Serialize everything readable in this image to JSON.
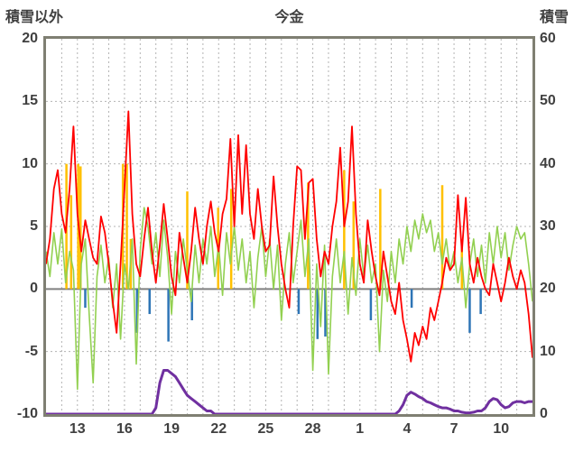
{
  "titles": {
    "left": "積雪以外",
    "center": "今金",
    "right": "積雪"
  },
  "colors": {
    "frame": "#7f7f72",
    "grid": "#b3b3b3",
    "zero_line": "#808080",
    "text": "#404040",
    "red": "#ff0000",
    "green": "#92d050",
    "orange": "#ffc000",
    "blue": "#2e75b6",
    "purple": "#7030a0"
  },
  "chart_data": {
    "type": "line",
    "title": "今金",
    "left_axis": {
      "label": "積雪以外",
      "min": -10,
      "max": 20,
      "ticks": [
        20,
        15,
        10,
        5,
        0,
        -5,
        -10
      ]
    },
    "right_axis": {
      "label": "積雪",
      "min": 0,
      "max": 60,
      "ticks": [
        60,
        50,
        40,
        30,
        20,
        10,
        0
      ]
    },
    "x_axis": {
      "tick_labels": [
        "13",
        "16",
        "19",
        "22",
        "25",
        "28",
        "1",
        "4",
        "7",
        "10"
      ],
      "tick_t": [
        2,
        5,
        8,
        11,
        14,
        17,
        20,
        23,
        26,
        29
      ],
      "t_start": 0,
      "t_end": 31,
      "t_step": 0.25,
      "grid_every_days": 1
    },
    "series": [
      {
        "name": "red-line",
        "axis": "left",
        "type": "line",
        "color": "#ff0000",
        "width": 1.8,
        "values": [
          2,
          4,
          8,
          9.5,
          6,
          4.5,
          8,
          13,
          6,
          3,
          5.5,
          4,
          2.5,
          2,
          5.8,
          4.5,
          2,
          -1,
          -3.5,
          2,
          8,
          14.2,
          6,
          2,
          1,
          4,
          6.5,
          3,
          0.5,
          3.5,
          6.8,
          4,
          1,
          -0.5,
          4.5,
          2.5,
          0.5,
          3,
          6.5,
          4,
          2,
          5,
          7,
          4.5,
          3,
          6,
          7.2,
          12,
          5,
          12.3,
          6,
          11.5,
          6,
          4,
          8,
          5,
          3,
          3.5,
          9,
          5,
          2,
          0,
          -1.5,
          5,
          9.8,
          9.5,
          4,
          8.5,
          8.8,
          4,
          1,
          3,
          2,
          5,
          7,
          11.3,
          5,
          7,
          13,
          6,
          2,
          0.5,
          5.5,
          3,
          1,
          -0.5,
          3,
          1,
          -1,
          -2,
          0.5,
          -2.5,
          -4,
          -5.8,
          -3.5,
          -4.5,
          -3,
          -4,
          -1.5,
          -2.5,
          -1,
          0.5,
          2.5,
          1.5,
          2,
          7.5,
          3,
          7.3,
          2,
          0.5,
          2.5,
          1,
          0,
          -0.5,
          2,
          0.5,
          -1,
          0.5,
          2.5,
          1,
          0,
          1.5,
          0.5,
          -2,
          -5.5
        ]
      },
      {
        "name": "green-line",
        "axis": "left",
        "type": "line",
        "color": "#92d050",
        "width": 1.6,
        "values": [
          3,
          1,
          4.5,
          2,
          4.8,
          0.5,
          3,
          1.5,
          -8,
          2,
          4,
          -2,
          -7.5,
          1,
          3.5,
          0.5,
          2.5,
          -1.5,
          2,
          -4,
          2,
          0,
          4,
          -6,
          3,
          6.5,
          5,
          2,
          4.5,
          1,
          5.5,
          2.5,
          -2,
          3,
          0.5,
          4,
          1.5,
          -1,
          3.5,
          0.5,
          4,
          2,
          5,
          1,
          3.5,
          -0.5,
          4.5,
          2,
          5,
          1.5,
          4,
          0.5,
          3,
          -1.5,
          2.5,
          5,
          1,
          4,
          0,
          3.5,
          -2.5,
          2,
          4.5,
          0.5,
          3,
          5.5,
          1,
          4,
          -6.5,
          2,
          -3,
          3.5,
          -6.8,
          1,
          4,
          0.5,
          3,
          -2,
          2.5,
          -0.5,
          4,
          1,
          3.5,
          0.5,
          2,
          -5,
          1.5,
          -1,
          3,
          0.5,
          4,
          2,
          5,
          3,
          5.5,
          4,
          6,
          4.5,
          5.5,
          3,
          4.5,
          2,
          4,
          1.5,
          3,
          0.5,
          2.5,
          -1.5,
          2,
          4,
          1,
          3.5,
          0.5,
          4.5,
          2,
          5,
          2.5,
          4.5,
          1.5,
          3.5,
          5,
          4,
          4.5,
          2,
          -1
        ]
      },
      {
        "name": "purple-snow-depth-line",
        "axis": "right",
        "type": "line",
        "color": "#7030a0",
        "width": 3,
        "values": [
          0,
          0,
          0,
          0,
          0,
          0,
          0,
          0,
          0,
          0,
          0,
          0,
          0,
          0,
          0,
          0,
          0,
          0,
          0,
          0,
          0,
          0,
          0,
          0,
          0,
          0,
          0,
          0,
          1,
          5,
          7,
          7,
          6.5,
          6,
          5,
          4,
          3,
          2.5,
          2,
          1.5,
          1,
          0.5,
          0.5,
          0,
          0,
          0,
          0,
          0,
          0,
          0,
          0,
          0,
          0,
          0,
          0,
          0,
          0,
          0,
          0,
          0,
          0,
          0,
          0,
          0,
          0,
          0,
          0,
          0,
          0,
          0,
          0,
          0,
          0,
          0,
          0,
          0,
          0,
          0,
          0,
          0,
          0,
          0,
          0,
          0,
          0,
          0,
          0,
          0,
          0,
          0,
          0.5,
          1.5,
          3,
          3.5,
          3.2,
          2.8,
          2.5,
          2,
          1.8,
          1.5,
          1.2,
          1,
          1,
          0.8,
          0.5,
          0.5,
          0.3,
          0.2,
          0.2,
          0.3,
          0.5,
          0.5,
          1,
          2,
          2.5,
          2.3,
          1.5,
          1,
          1.2,
          1.8,
          2,
          2,
          1.8,
          2,
          2
        ]
      },
      {
        "name": "orange-bars",
        "axis": "left",
        "type": "bar",
        "color": "#ffc000",
        "bar_width": 2.5,
        "points": [
          [
            1.3,
            10
          ],
          [
            1.6,
            7.5
          ],
          [
            2.05,
            10
          ],
          [
            2.2,
            9.8
          ],
          [
            4.9,
            10
          ],
          [
            5.15,
            10
          ],
          [
            5.4,
            4
          ],
          [
            9.0,
            7.8
          ],
          [
            10.97,
            6.5
          ],
          [
            11.8,
            8
          ],
          [
            16.7,
            8.5
          ],
          [
            19.0,
            9.5
          ],
          [
            19.6,
            7
          ],
          [
            21.3,
            8
          ],
          [
            25.25,
            8.3
          ],
          [
            26.5,
            3.5
          ]
        ]
      },
      {
        "name": "blue-bars",
        "axis": "left",
        "type": "bar",
        "color": "#2e75b6",
        "bar_width": 2.5,
        "points": [
          [
            2.5,
            -1.5
          ],
          [
            5.8,
            -3.5
          ],
          [
            6.6,
            -2
          ],
          [
            7.8,
            -4.2
          ],
          [
            9.3,
            -2.5
          ],
          [
            16.1,
            -2
          ],
          [
            17.3,
            -4
          ],
          [
            17.8,
            -3.8
          ],
          [
            20.7,
            -2.5
          ],
          [
            23.3,
            -1.5
          ],
          [
            27.0,
            -3.5
          ],
          [
            27.7,
            -2
          ]
        ]
      }
    ]
  }
}
